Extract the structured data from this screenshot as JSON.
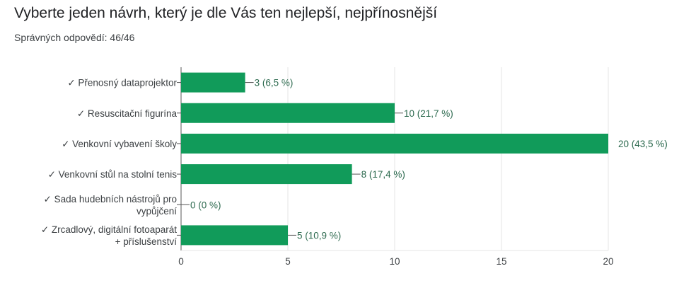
{
  "question": {
    "title": "Vyberte jeden návrh, který je dle Vás ten nejlepší, nejpřínosnější",
    "subtitle": "Správných odpovědí: 46/46"
  },
  "colors": {
    "bar": "#119b5a",
    "grid": "#e6e6e6",
    "axis": "#555555",
    "value_text": "#2d6a4f"
  },
  "chart_data": {
    "type": "bar",
    "orientation": "horizontal",
    "categories": [
      [
        "✓ Přenosný dataprojektor"
      ],
      [
        "✓ Resuscitační figurína"
      ],
      [
        "✓ Venkovní vybavení školy"
      ],
      [
        "✓ Venkovní stůl na stolní tenis"
      ],
      [
        "✓ Sada hudebních nástrojů pro",
        "vypůjčení"
      ],
      [
        "✓ Zrcadlový, digitální fotoaparát",
        "+ příslušenství"
      ]
    ],
    "values": [
      3,
      10,
      20,
      8,
      0,
      5
    ],
    "value_labels": [
      "3 (6,5 %)",
      "10 (21,7 %)",
      "20 (43,5 %)",
      "8 (17,4 %)",
      "0 (0 %)",
      "5 (10,9 %)"
    ],
    "xlim": [
      0,
      20
    ],
    "xticks": [
      "0",
      "5",
      "10",
      "15",
      "20"
    ],
    "grid": true
  }
}
